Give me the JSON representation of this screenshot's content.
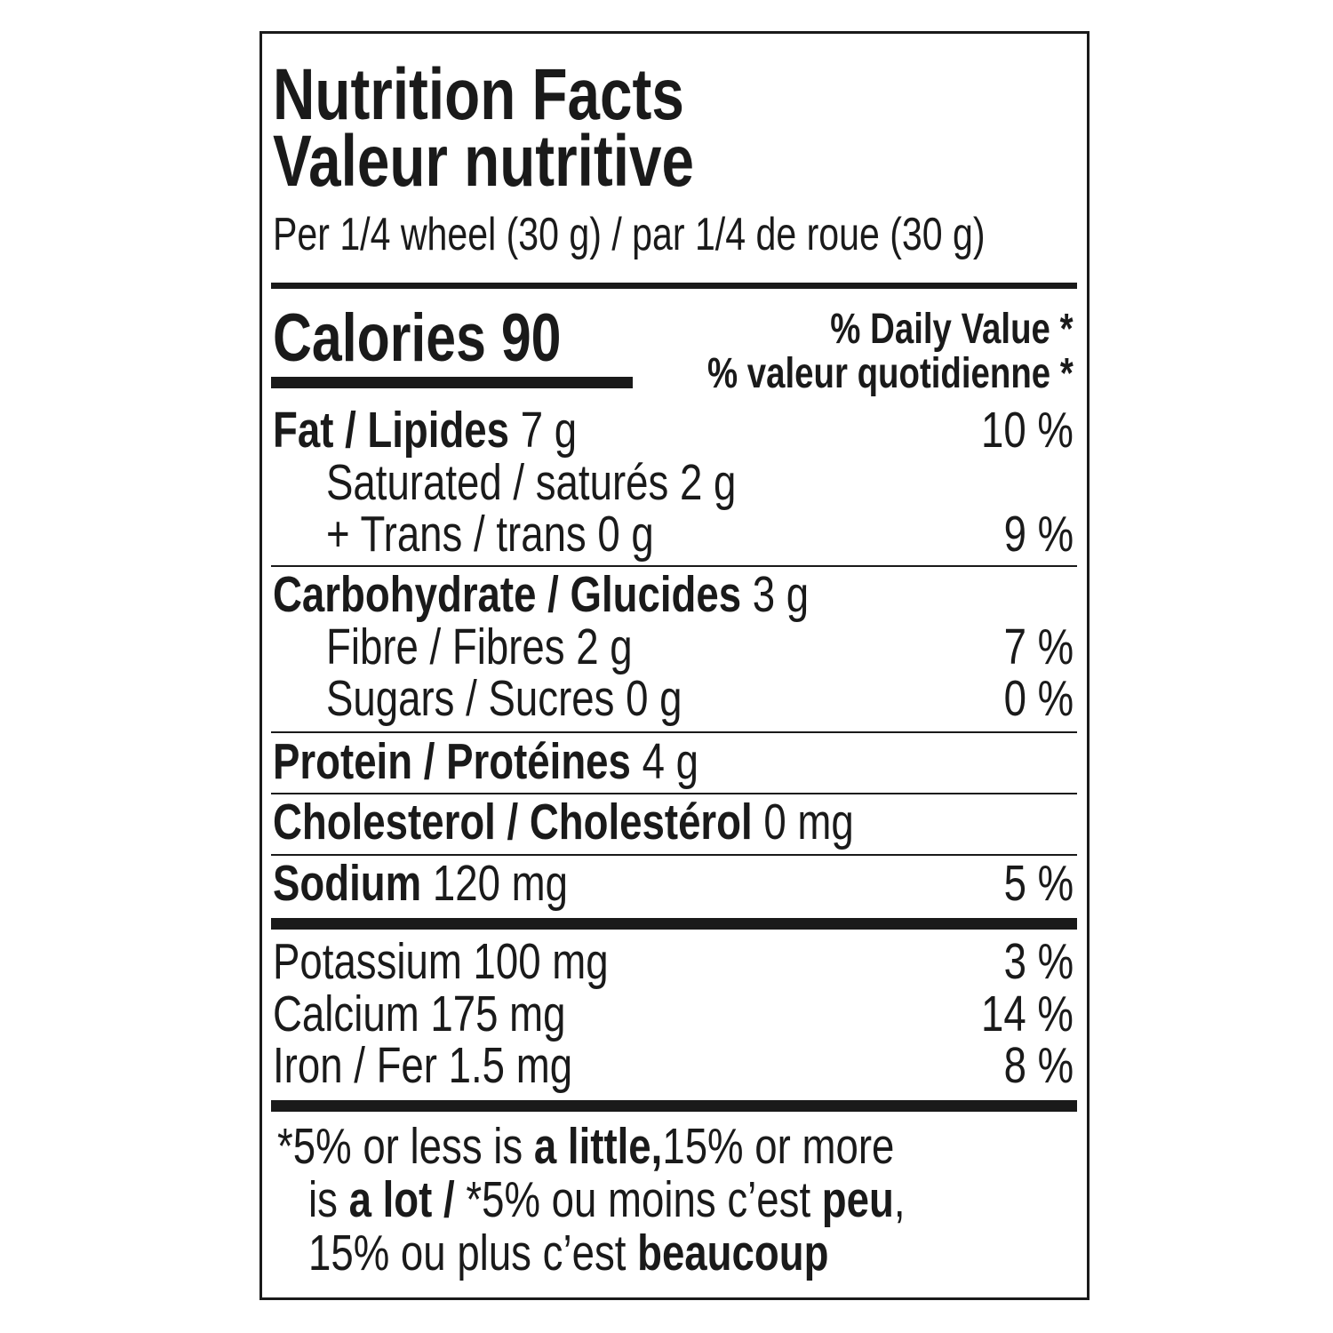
{
  "title_en": "Nutrition Facts",
  "title_fr": "Valeur nutritive",
  "serving": "Per 1/4 wheel (30 g) / par 1/4 de roue (30 g)",
  "calories_label": "Calories 90",
  "dv_en": "% Daily Value *",
  "dv_fr": "% valeur quotidienne *",
  "rows": [
    {
      "label": "Fat / Lipides",
      "amount": " 7 g",
      "dv": "10 %"
    },
    {
      "label": "Saturated / saturés 2 g",
      "amount": "",
      "dv": ""
    },
    {
      "label": "+ Trans / trans 0 g",
      "amount": "",
      "dv": "9 %"
    },
    {
      "label": "Carbohydrate / Glucides",
      "amount": " 3 g",
      "dv": ""
    },
    {
      "label": "Fibre / Fibres 2 g",
      "amount": "",
      "dv": "7 %"
    },
    {
      "label": "Sugars / Sucres 0 g",
      "amount": "",
      "dv": "0 %"
    },
    {
      "label": "Protein / Protéines",
      "amount": " 4 g",
      "dv": ""
    },
    {
      "label": "Cholesterol / Cholestérol",
      "amount": " 0 mg",
      "dv": ""
    },
    {
      "label": "Sodium",
      "amount": " 120 mg",
      "dv": "5 %"
    },
    {
      "label": "Potassium 100 mg",
      "amount": "",
      "dv": "3 %"
    },
    {
      "label": "Calcium 175 mg",
      "amount": "",
      "dv": "14 %"
    },
    {
      "label": "Iron / Fer 1.5 mg",
      "amount": "",
      "dv": "8 %"
    }
  ],
  "footnote": [
    "*5% or less is ",
    "a little,",
    "15% or more",
    "is ",
    "a lot / ",
    "*5% ou moins c’est ",
    "peu",
    ",",
    "15% ou plus c’est ",
    "beaucoup"
  ]
}
